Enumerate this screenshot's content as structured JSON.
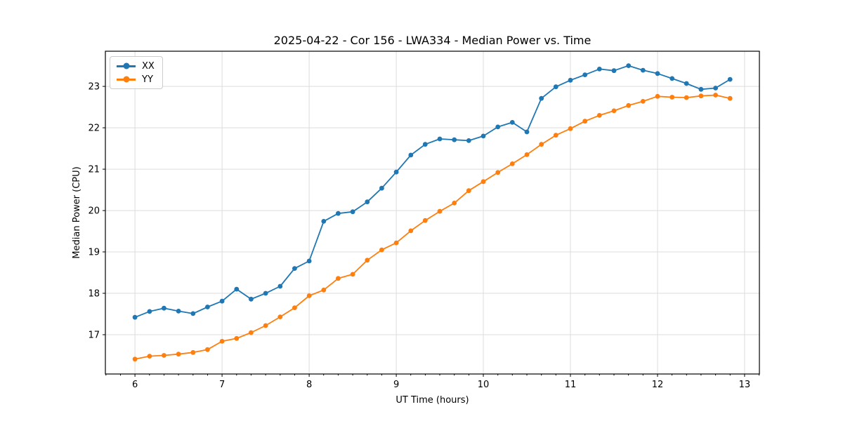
{
  "chart_data": {
    "type": "line",
    "title": "2025-04-22 - Cor 156 - LWA334 - Median Power vs. Time",
    "xlabel": "UT Time (hours)",
    "ylabel": "Median Power (CPU)",
    "xlim": [
      5.66,
      13.17
    ],
    "ylim": [
      16.05,
      23.85
    ],
    "x_ticks": [
      6,
      7,
      8,
      9,
      10,
      11,
      12,
      13
    ],
    "y_ticks": [
      17,
      18,
      19,
      20,
      21,
      22,
      23
    ],
    "x_minor_step": 0.1667,
    "grid": true,
    "legend_position": "upper-left",
    "x": [
      6.0,
      6.167,
      6.333,
      6.5,
      6.667,
      6.833,
      7.0,
      7.167,
      7.333,
      7.5,
      7.667,
      7.833,
      8.0,
      8.167,
      8.333,
      8.5,
      8.667,
      8.833,
      9.0,
      9.167,
      9.333,
      9.5,
      9.667,
      9.833,
      10.0,
      10.167,
      10.333,
      10.5,
      10.667,
      10.833,
      11.0,
      11.167,
      11.333,
      11.5,
      11.667,
      11.833,
      12.0,
      12.167,
      12.333,
      12.5,
      12.667,
      12.833
    ],
    "series": [
      {
        "name": "XX",
        "color": "#1f77b4",
        "values": [
          17.42,
          17.56,
          17.64,
          17.57,
          17.51,
          17.67,
          17.81,
          18.1,
          17.86,
          18.0,
          18.17,
          18.6,
          18.78,
          19.74,
          19.93,
          19.97,
          20.21,
          20.54,
          20.93,
          21.34,
          21.6,
          21.73,
          21.71,
          21.69,
          21.8,
          22.02,
          22.13,
          21.9,
          22.71,
          22.99,
          23.15,
          23.28,
          23.42,
          23.38,
          23.5,
          23.39,
          23.31,
          23.19,
          23.07,
          22.93,
          22.96,
          23.17
        ]
      },
      {
        "name": "YY",
        "color": "#ff7f0e",
        "values": [
          16.41,
          16.48,
          16.5,
          16.53,
          16.57,
          16.64,
          16.84,
          16.91,
          17.05,
          17.22,
          17.43,
          17.65,
          17.94,
          18.08,
          18.36,
          18.46,
          18.8,
          19.05,
          19.22,
          19.51,
          19.76,
          19.98,
          20.18,
          20.48,
          20.7,
          20.92,
          21.13,
          21.35,
          21.6,
          21.82,
          21.98,
          22.16,
          22.3,
          22.41,
          22.54,
          22.64,
          22.76,
          22.74,
          22.73,
          22.77,
          22.79,
          22.71
        ]
      }
    ]
  }
}
